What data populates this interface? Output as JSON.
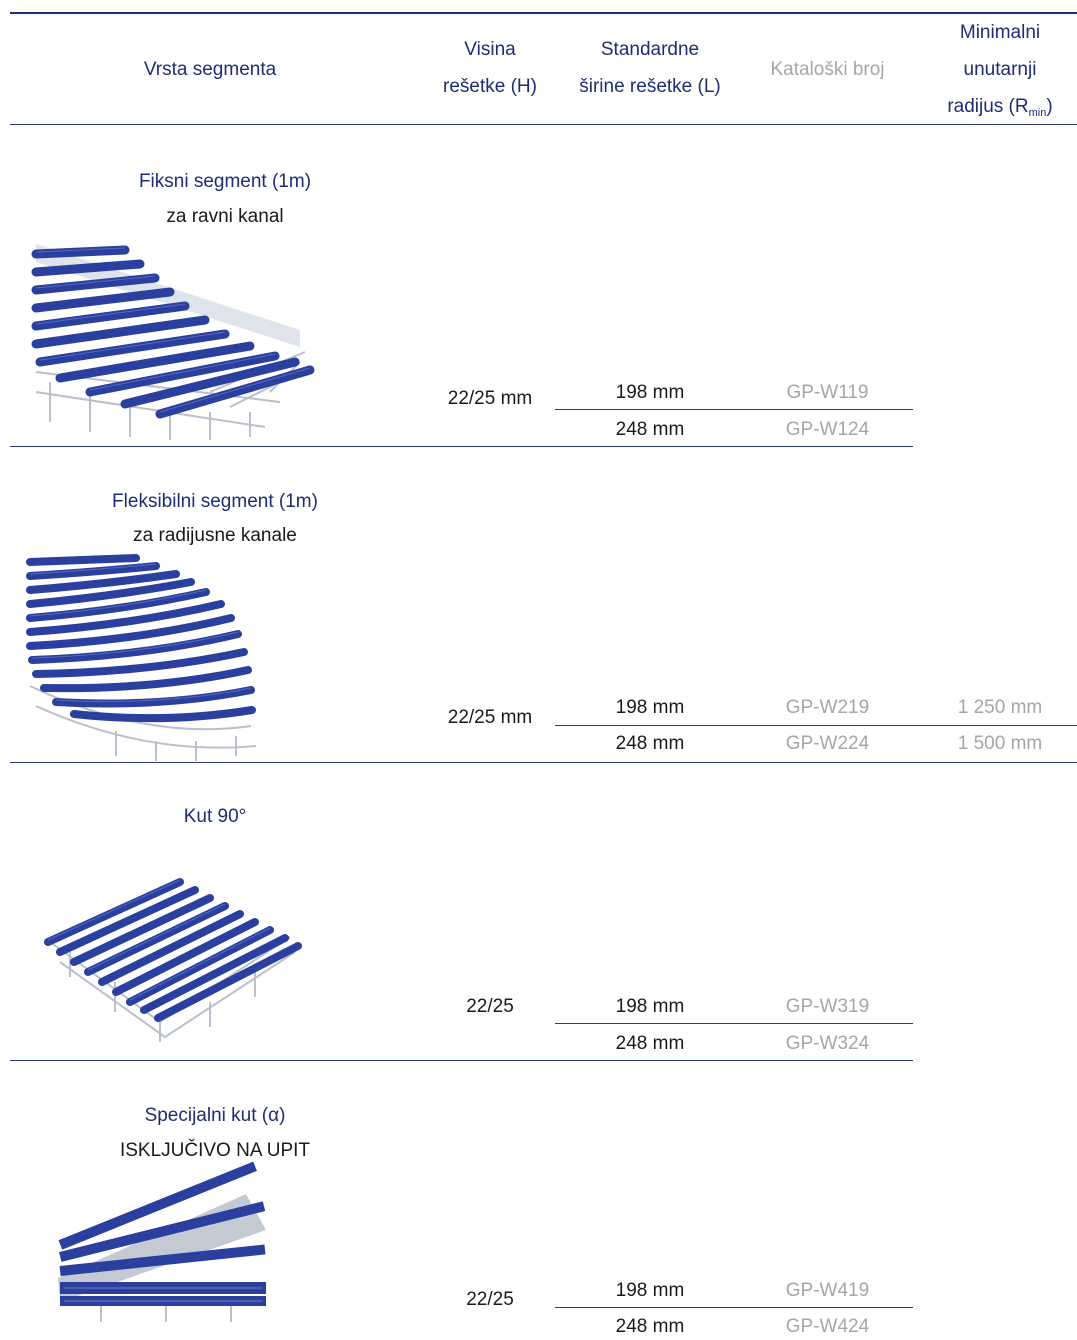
{
  "header": {
    "col_type": "Vrsta segmenta",
    "col_height": [
      "Visina",
      "rešetke (H)"
    ],
    "col_width": [
      "Standardne",
      "širine rešetke (L)"
    ],
    "col_catalog": "Kataloški broj",
    "col_radius": [
      "Minimalni",
      "unutarnji",
      "radijus (R",
      "min",
      ")"
    ]
  },
  "sections": [
    {
      "title": "Fiksni segment (1m)",
      "subtitle": "za ravni kanal",
      "height": "22/25 mm",
      "rows": [
        {
          "width": "198 mm",
          "catalog": "GP-W119",
          "radius": ""
        },
        {
          "width": "248 mm",
          "catalog": "GP-W124",
          "radius": ""
        }
      ]
    },
    {
      "title": "Fleksibilni segment (1m)",
      "subtitle": "za radijusne kanale",
      "height": "22/25 mm",
      "rows": [
        {
          "width": "198 mm",
          "catalog": "GP-W219",
          "radius": "1 250 mm"
        },
        {
          "width": "248 mm",
          "catalog": "GP-W224",
          "radius": "1 500 mm"
        }
      ]
    },
    {
      "title": "Kut 90°",
      "subtitle": "",
      "height": "22/25",
      "rows": [
        {
          "width": "198 mm",
          "catalog": "GP-W319",
          "radius": ""
        },
        {
          "width": "248 mm",
          "catalog": "GP-W324",
          "radius": ""
        }
      ]
    },
    {
      "title": "Specijalni kut (α)",
      "subtitle": "ISKLJUČIVO NA UPIT",
      "height": "22/25",
      "rows": [
        {
          "width": "198 mm",
          "catalog": "GP-W419",
          "radius": ""
        },
        {
          "width": "248 mm",
          "catalog": "GP-W424",
          "radius": ""
        }
      ]
    }
  ],
  "colors": {
    "navy": "#1f2c78",
    "text": "#1a1a1a",
    "muted": "#a6a6a6",
    "grate_blue": "#2a3f9e",
    "frame_gray": "#c9ced6"
  },
  "icons": {
    "s0": "straight-grating-image",
    "s1": "curved-grating-image",
    "s2": "corner-90-grating-image",
    "s3": "special-angle-grating-image"
  }
}
